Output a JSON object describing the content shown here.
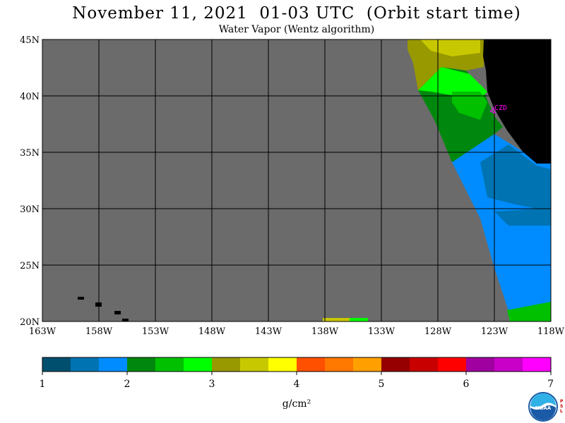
{
  "title": "November 11, 2021  01-03 UTC  (Orbit start time)",
  "subtitle": "Water Vapor (Wentz algorithm)",
  "map": {
    "lat_labels": [
      "45N",
      "40N",
      "35N",
      "30N",
      "25N",
      "20N"
    ],
    "lon_labels": [
      "163W",
      "158W",
      "153W",
      "148W",
      "143W",
      "138W",
      "133W",
      "128W",
      "123W",
      "118W"
    ],
    "lat_range": [
      20,
      45
    ],
    "lon_range": [
      -163,
      -118
    ],
    "station_label": "CZD",
    "colors": {
      "no_data": "#6b6b6b",
      "land": "#000000",
      "grid": "#000000"
    }
  },
  "colorbar": {
    "tick_labels": [
      "1",
      "2",
      "3",
      "4",
      "5",
      "6",
      "7"
    ],
    "unit_label": "g/cm²",
    "colors": [
      "#004f6f",
      "#0073b3",
      "#008cff",
      "#00880e",
      "#00c000",
      "#00ff00",
      "#989800",
      "#c8c800",
      "#ffff00",
      "#ff5000",
      "#ff7800",
      "#ffa000",
      "#960000",
      "#c80000",
      "#ff0000",
      "#a000a0",
      "#c800c8",
      "#ff00ff"
    ]
  },
  "logo": {
    "text": "NOAA",
    "side_text": "PSL"
  }
}
